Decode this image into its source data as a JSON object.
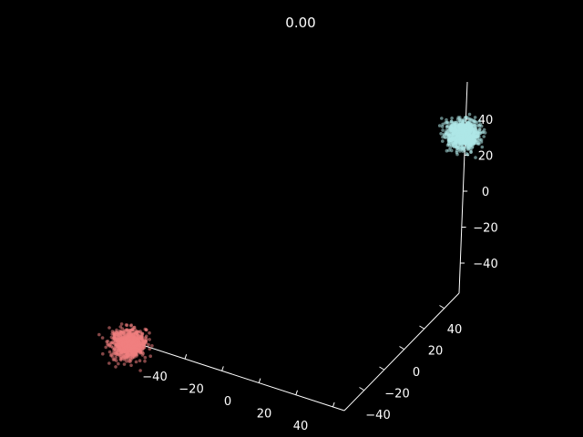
{
  "chart_data": {
    "type": "scatter",
    "projection": "3d",
    "title": "0.00",
    "background": "#000000",
    "grid": false,
    "axes": {
      "x": {
        "ticks": [
          -40,
          -20,
          0,
          20,
          40
        ],
        "tick_labels": [
          "−40",
          "−20",
          "0",
          "20",
          "40"
        ]
      },
      "y": {
        "ticks": [
          -40,
          -20,
          0,
          20,
          40
        ],
        "tick_labels": [
          "−40",
          "−20",
          "0",
          "20",
          "40"
        ]
      },
      "z": {
        "ticks": [
          -40,
          -20,
          0,
          20,
          40
        ],
        "tick_labels": [
          "−40",
          "−20",
          "0",
          "20",
          "40"
        ]
      }
    },
    "series": [
      {
        "color": "#f08080",
        "center": [
          -45,
          -45,
          -45
        ],
        "spread": 3
      },
      {
        "color": "#aee8e8",
        "center": [
          45,
          45,
          45
        ],
        "spread": 3
      }
    ]
  }
}
